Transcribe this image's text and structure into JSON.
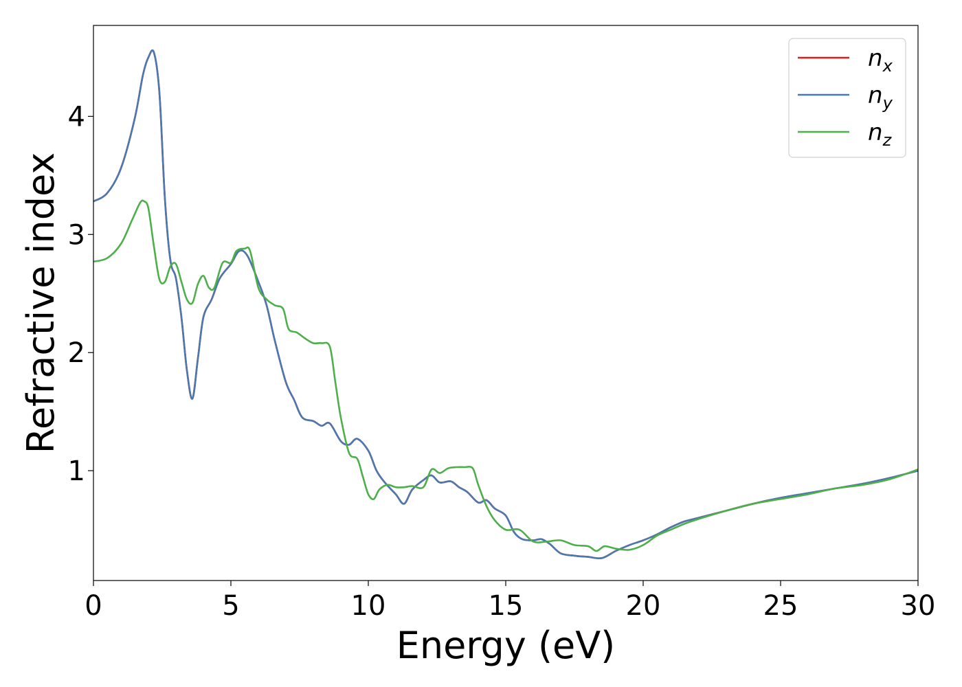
{
  "chart_data": {
    "type": "line",
    "xlabel": "Energy (eV)",
    "ylabel": "Refractive index",
    "xlim": [
      0,
      30
    ],
    "ylim": [
      0.07,
      4.77
    ],
    "x_ticks": [
      0,
      5,
      10,
      15,
      20,
      25,
      30
    ],
    "x_tick_labels": [
      "0",
      "5",
      "10",
      "15",
      "20",
      "25",
      "30"
    ],
    "y_ticks": [
      1,
      2,
      3,
      4
    ],
    "y_tick_labels": [
      "1",
      "2",
      "3",
      "4"
    ],
    "grid": false,
    "legend_position": "top-right",
    "series": [
      {
        "name": "n_x",
        "legend_base": "n",
        "legend_sub": "x",
        "color": "#e41a1c",
        "x": [
          0,
          0.5,
          1.0,
          1.5,
          1.8,
          2.0,
          2.2,
          2.4,
          2.6,
          2.8,
          3.0,
          3.2,
          3.4,
          3.6,
          3.8,
          4.0,
          4.3,
          4.6,
          5.0,
          5.3,
          5.6,
          6.0,
          6.3,
          6.6,
          7.0,
          7.3,
          7.6,
          8.0,
          8.3,
          8.6,
          9.0,
          9.3,
          9.6,
          10.0,
          10.3,
          10.6,
          11.0,
          11.3,
          11.6,
          12.0,
          12.3,
          12.6,
          13.0,
          13.3,
          13.6,
          14.0,
          14.3,
          14.6,
          15.0,
          15.3,
          15.6,
          16.0,
          16.3,
          16.6,
          17.0,
          17.5,
          18.0,
          18.5,
          19.0,
          19.5,
          20.0,
          20.5,
          21.0,
          21.5,
          22.0,
          23.0,
          24.0,
          25.0,
          26.0,
          27.0,
          28.0,
          29.0,
          30.0
        ],
        "y": [
          3.28,
          3.35,
          3.56,
          3.98,
          4.35,
          4.5,
          4.54,
          4.2,
          3.3,
          2.78,
          2.63,
          2.3,
          1.85,
          1.61,
          1.95,
          2.3,
          2.45,
          2.63,
          2.75,
          2.86,
          2.82,
          2.6,
          2.4,
          2.1,
          1.75,
          1.6,
          1.45,
          1.42,
          1.38,
          1.4,
          1.25,
          1.22,
          1.27,
          1.17,
          1.0,
          0.9,
          0.8,
          0.72,
          0.84,
          0.92,
          0.96,
          0.9,
          0.91,
          0.86,
          0.82,
          0.73,
          0.75,
          0.68,
          0.62,
          0.48,
          0.42,
          0.41,
          0.42,
          0.38,
          0.3,
          0.28,
          0.27,
          0.26,
          0.32,
          0.37,
          0.41,
          0.46,
          0.52,
          0.57,
          0.6,
          0.66,
          0.72,
          0.77,
          0.81,
          0.85,
          0.89,
          0.94,
          1.0
        ]
      },
      {
        "name": "n_y",
        "legend_base": "n",
        "legend_sub": "y",
        "color": "#4a78b0",
        "x": [
          0,
          0.5,
          1.0,
          1.5,
          1.8,
          2.0,
          2.2,
          2.4,
          2.6,
          2.8,
          3.0,
          3.2,
          3.4,
          3.6,
          3.8,
          4.0,
          4.3,
          4.6,
          5.0,
          5.3,
          5.6,
          6.0,
          6.3,
          6.6,
          7.0,
          7.3,
          7.6,
          8.0,
          8.3,
          8.6,
          9.0,
          9.3,
          9.6,
          10.0,
          10.3,
          10.6,
          11.0,
          11.3,
          11.6,
          12.0,
          12.3,
          12.6,
          13.0,
          13.3,
          13.6,
          14.0,
          14.3,
          14.6,
          15.0,
          15.3,
          15.6,
          16.0,
          16.3,
          16.6,
          17.0,
          17.5,
          18.0,
          18.5,
          19.0,
          19.5,
          20.0,
          20.5,
          21.0,
          21.5,
          22.0,
          23.0,
          24.0,
          25.0,
          26.0,
          27.0,
          28.0,
          29.0,
          30.0
        ],
        "y": [
          3.28,
          3.35,
          3.56,
          3.98,
          4.35,
          4.5,
          4.54,
          4.2,
          3.3,
          2.78,
          2.63,
          2.3,
          1.85,
          1.61,
          1.95,
          2.3,
          2.45,
          2.63,
          2.75,
          2.86,
          2.82,
          2.6,
          2.4,
          2.1,
          1.75,
          1.6,
          1.45,
          1.42,
          1.38,
          1.4,
          1.25,
          1.22,
          1.27,
          1.17,
          1.0,
          0.9,
          0.8,
          0.72,
          0.84,
          0.92,
          0.96,
          0.9,
          0.91,
          0.86,
          0.82,
          0.73,
          0.75,
          0.68,
          0.62,
          0.48,
          0.42,
          0.41,
          0.42,
          0.38,
          0.3,
          0.28,
          0.27,
          0.26,
          0.32,
          0.37,
          0.41,
          0.46,
          0.52,
          0.57,
          0.6,
          0.66,
          0.72,
          0.77,
          0.81,
          0.85,
          0.89,
          0.94,
          1.0
        ]
      },
      {
        "name": "n_z",
        "legend_base": "n",
        "legend_sub": "z",
        "color": "#4daf4a",
        "x": [
          0,
          0.5,
          1.0,
          1.4,
          1.7,
          1.85,
          2.0,
          2.2,
          2.4,
          2.6,
          2.8,
          3.0,
          3.2,
          3.4,
          3.6,
          3.8,
          4.0,
          4.2,
          4.4,
          4.7,
          5.0,
          5.2,
          5.5,
          5.7,
          6.0,
          6.3,
          6.6,
          6.9,
          7.1,
          7.4,
          7.7,
          8.0,
          8.3,
          8.6,
          8.8,
          9.0,
          9.3,
          9.6,
          9.8,
          10.0,
          10.2,
          10.4,
          10.7,
          11.0,
          11.3,
          11.6,
          12.0,
          12.3,
          12.6,
          12.9,
          13.2,
          13.5,
          13.8,
          14.0,
          14.3,
          14.6,
          15.0,
          15.5,
          16.0,
          16.5,
          17.0,
          17.5,
          18.0,
          18.3,
          18.6,
          19.0,
          19.5,
          20.0,
          20.5,
          21.0,
          21.5,
          22.0,
          23.0,
          24.0,
          25.0,
          26.0,
          27.0,
          28.0,
          29.0,
          30.0
        ],
        "y": [
          2.77,
          2.8,
          2.92,
          3.12,
          3.27,
          3.28,
          3.22,
          2.9,
          2.62,
          2.6,
          2.73,
          2.75,
          2.6,
          2.45,
          2.42,
          2.58,
          2.65,
          2.55,
          2.55,
          2.76,
          2.76,
          2.86,
          2.88,
          2.86,
          2.55,
          2.45,
          2.4,
          2.37,
          2.2,
          2.17,
          2.12,
          2.08,
          2.08,
          2.05,
          1.75,
          1.45,
          1.15,
          1.1,
          0.95,
          0.8,
          0.76,
          0.84,
          0.88,
          0.86,
          0.86,
          0.87,
          0.86,
          1.01,
          0.98,
          1.02,
          1.03,
          1.03,
          1.02,
          0.88,
          0.7,
          0.58,
          0.5,
          0.5,
          0.4,
          0.4,
          0.41,
          0.37,
          0.36,
          0.32,
          0.36,
          0.34,
          0.33,
          0.37,
          0.45,
          0.5,
          0.55,
          0.59,
          0.66,
          0.72,
          0.76,
          0.8,
          0.85,
          0.88,
          0.93,
          1.01
        ]
      }
    ]
  }
}
